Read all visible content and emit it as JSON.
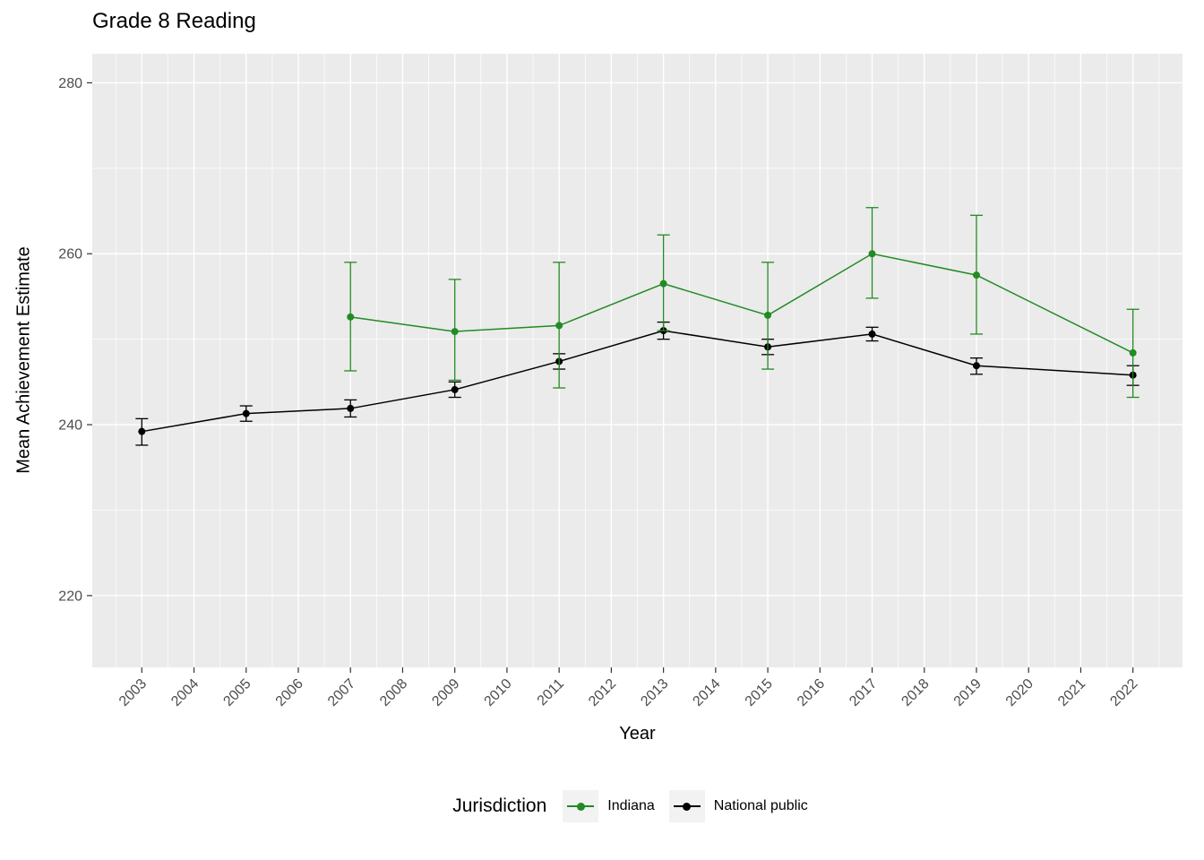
{
  "chart_data": {
    "type": "line",
    "title": "Grade 8 Reading",
    "xlabel": "Year",
    "ylabel": "Mean Achievement Estimate",
    "legend_title": "Jurisdiction",
    "legend_position": "bottom",
    "grid": true,
    "panel_bg": "#EBEBEB",
    "grid_color": "#FFFFFF",
    "tick_color": "#333333",
    "tick_label_color": "#4D4D4D",
    "x_ticks": [
      2003,
      2004,
      2005,
      2006,
      2007,
      2008,
      2009,
      2010,
      2011,
      2012,
      2013,
      2014,
      2015,
      2016,
      2017,
      2018,
      2019,
      2020,
      2021,
      2022
    ],
    "y_ticks": [
      220,
      240,
      260,
      280
    ],
    "y_minor": [
      230,
      250,
      270
    ],
    "ylim": [
      211.6,
      283.4
    ],
    "series": [
      {
        "name": "Indiana",
        "color": "#228B22",
        "points": [
          {
            "x": 2007,
            "y": 252.6,
            "lo": 246.3,
            "hi": 259.0
          },
          {
            "x": 2009,
            "y": 250.9,
            "lo": 245.2,
            "hi": 257.0
          },
          {
            "x": 2011,
            "y": 251.6,
            "lo": 244.3,
            "hi": 259.0
          },
          {
            "x": 2013,
            "y": 256.5,
            "lo": 251.0,
            "hi": 262.2
          },
          {
            "x": 2015,
            "y": 252.8,
            "lo": 246.5,
            "hi": 259.0
          },
          {
            "x": 2017,
            "y": 260.0,
            "lo": 254.8,
            "hi": 265.4
          },
          {
            "x": 2019,
            "y": 257.5,
            "lo": 250.6,
            "hi": 264.5
          },
          {
            "x": 2022,
            "y": 248.4,
            "lo": 243.2,
            "hi": 253.5
          }
        ]
      },
      {
        "name": "National public",
        "color": "#000000",
        "points": [
          {
            "x": 2003,
            "y": 239.2,
            "lo": 237.6,
            "hi": 240.7
          },
          {
            "x": 2005,
            "y": 241.3,
            "lo": 240.4,
            "hi": 242.2
          },
          {
            "x": 2007,
            "y": 241.9,
            "lo": 240.9,
            "hi": 242.9
          },
          {
            "x": 2009,
            "y": 244.1,
            "lo": 243.2,
            "hi": 245.0
          },
          {
            "x": 2011,
            "y": 247.4,
            "lo": 246.5,
            "hi": 248.3
          },
          {
            "x": 2013,
            "y": 251.0,
            "lo": 250.0,
            "hi": 252.0
          },
          {
            "x": 2015,
            "y": 249.1,
            "lo": 248.2,
            "hi": 250.0
          },
          {
            "x": 2017,
            "y": 250.6,
            "lo": 249.8,
            "hi": 251.4
          },
          {
            "x": 2019,
            "y": 246.9,
            "lo": 245.9,
            "hi": 247.8
          },
          {
            "x": 2022,
            "y": 245.8,
            "lo": 244.6,
            "hi": 246.9
          }
        ]
      }
    ]
  }
}
